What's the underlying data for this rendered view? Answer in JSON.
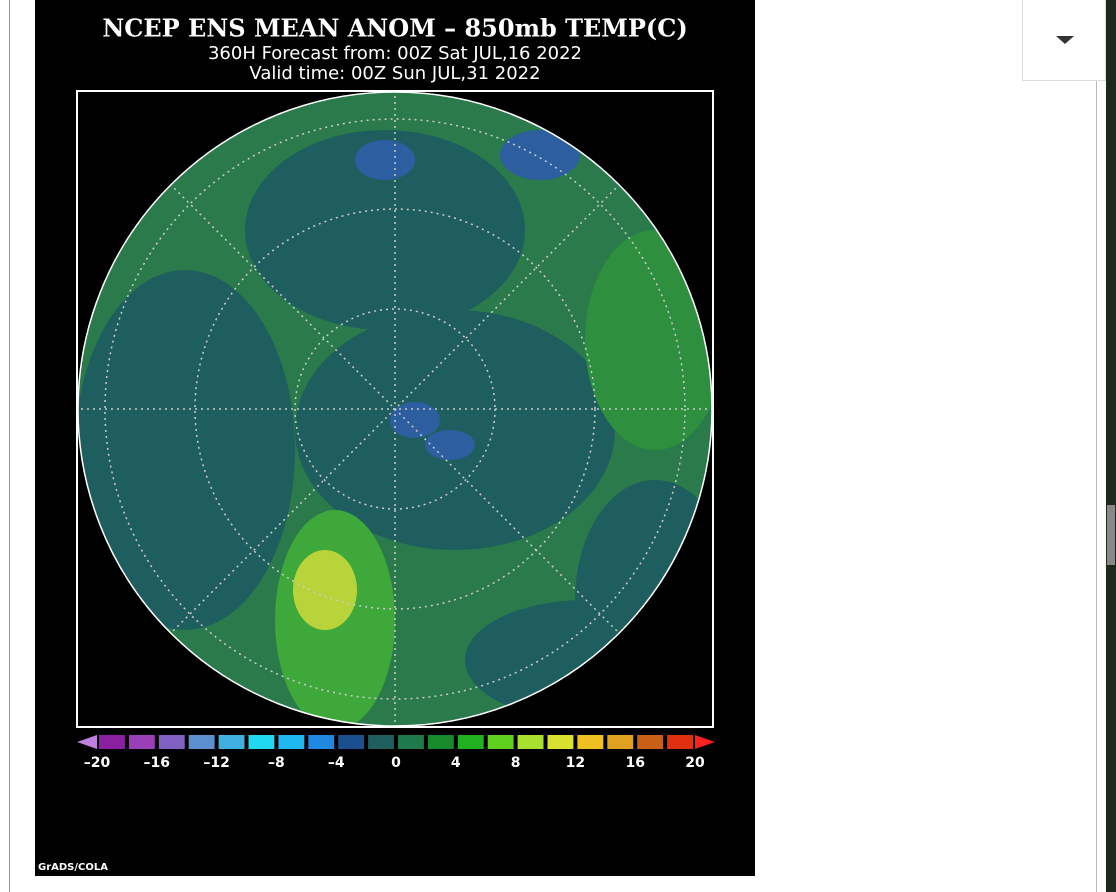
{
  "image": {
    "title": "NCEP ENS MEAN ANOM – 850mb TEMP(C)",
    "subtitle": "360H Forecast from: 00Z Sat JUL,16 2022",
    "valid": "Valid time: 00Z Sun JUL,31 2022",
    "colorbar_labels": [
      "–20",
      "–16",
      "–12",
      "–8",
      "–4",
      "0",
      "4",
      "8",
      "12",
      "16",
      "20"
    ],
    "credit": "GrADS/COLA"
  }
}
